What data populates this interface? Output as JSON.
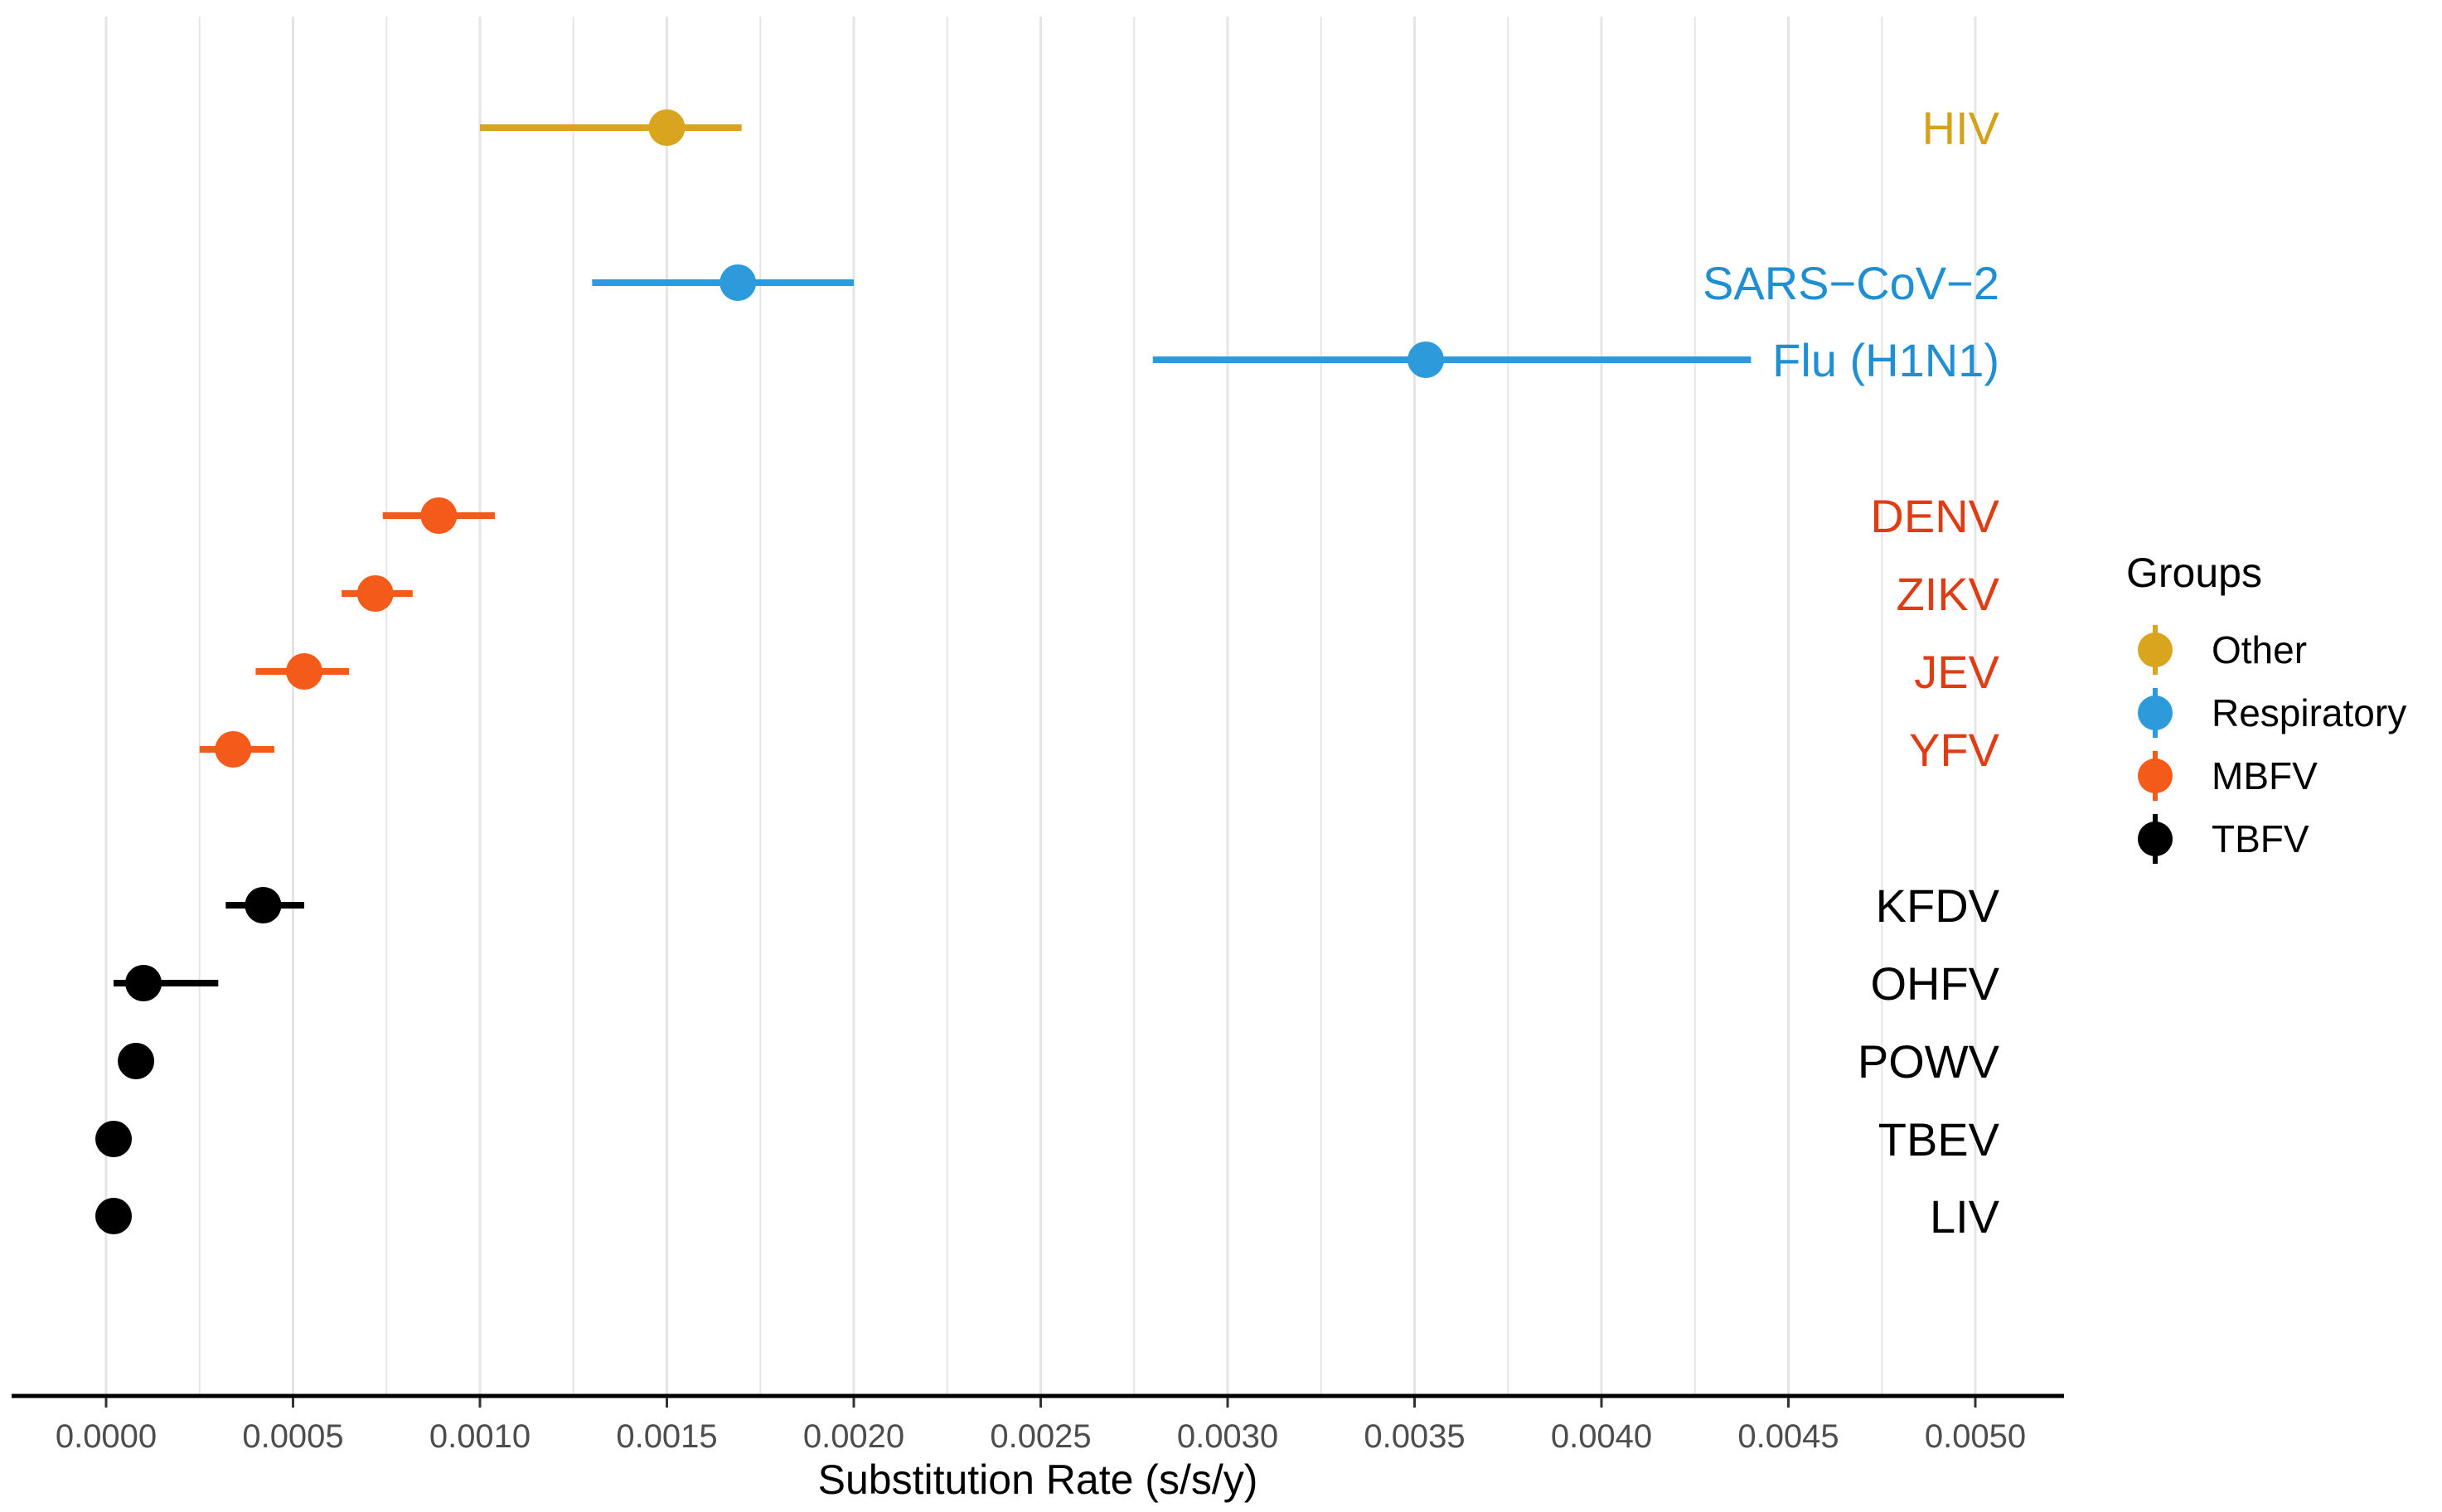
{
  "chart_data": {
    "type": "scatter",
    "subtype": "point-range",
    "xlabel": "Substitution Rate (s/s/y)",
    "ylabel": "",
    "xlim": [
      -0.00025,
      0.0052
    ],
    "x_ticks": [
      "0.0000",
      "0.0005",
      "0.0010",
      "0.0015",
      "0.0020",
      "0.0025",
      "0.0030",
      "0.0035",
      "0.0040",
      "0.0045",
      "0.0050"
    ],
    "x_tick_values": [
      0,
      0.0005,
      0.001,
      0.0015,
      0.002,
      0.0025,
      0.003,
      0.0035,
      0.004,
      0.0045,
      0.005
    ],
    "grid": "vertical",
    "legend": {
      "title": "Groups",
      "position": "right",
      "entries": [
        {
          "name": "Other",
          "color": "#DAA51E"
        },
        {
          "name": "Respiratory",
          "color": "#2D9BDB"
        },
        {
          "name": "MBFV",
          "color": "#F45B1A"
        },
        {
          "name": "TBFV",
          "color": "#000000"
        }
      ]
    },
    "series": [
      {
        "label": "HIV",
        "group": "Other",
        "value": 0.0015,
        "low": 0.001,
        "high": 0.0017,
        "label_color": "#D4A21A"
      },
      {
        "label": "SARS−CoV−2",
        "group": "Respiratory",
        "value": 0.00169,
        "low": 0.0013,
        "high": 0.002,
        "label_color": "#1E8FD2"
      },
      {
        "label": "Flu (H1N1)",
        "group": "Respiratory",
        "value": 0.00353,
        "low": 0.0028,
        "high": 0.0044,
        "label_color": "#1E8FD2"
      },
      {
        "label": "DENV",
        "group": "MBFV",
        "value": 0.00089,
        "low": 0.00074,
        "high": 0.00104,
        "label_color": "#E03C14"
      },
      {
        "label": "ZIKV",
        "group": "MBFV",
        "value": 0.00072,
        "low": 0.00063,
        "high": 0.00082,
        "label_color": "#E03C14"
      },
      {
        "label": "JEV",
        "group": "MBFV",
        "value": 0.00053,
        "low": 0.0004,
        "high": 0.00065,
        "label_color": "#E03C14"
      },
      {
        "label": "YFV",
        "group": "MBFV",
        "value": 0.00034,
        "low": 0.00025,
        "high": 0.00045,
        "label_color": "#E03C14"
      },
      {
        "label": "KFDV",
        "group": "TBFV",
        "value": 0.00042,
        "low": 0.00032,
        "high": 0.00053,
        "label_color": "#000000"
      },
      {
        "label": "OHFV",
        "group": "TBFV",
        "value": 0.0001,
        "low": 2e-05,
        "high": 0.0003,
        "label_color": "#000000"
      },
      {
        "label": "POWV",
        "group": "TBFV",
        "value": 8e-05,
        "low": 8e-05,
        "high": 8e-05,
        "label_color": "#000000"
      },
      {
        "label": "TBEV",
        "group": "TBFV",
        "value": 2e-05,
        "low": 2e-05,
        "high": 2e-05,
        "label_color": "#000000"
      },
      {
        "label": "LIV",
        "group": "TBFV",
        "value": 2e-05,
        "low": 2e-05,
        "high": 2e-05,
        "label_color": "#000000"
      }
    ]
  }
}
